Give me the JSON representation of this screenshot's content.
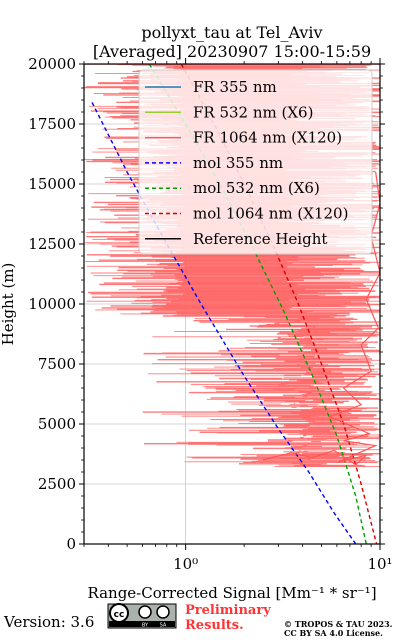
{
  "chart_data": {
    "type": "line",
    "title": "pollyxt_tau at Tel_Aviv",
    "subtitle": "[Averaged] 20230907 15:00-15:59",
    "xlabel": "Range-Corrected Signal [Mm⁻¹ * sr⁻¹]",
    "ylabel": "Height (m)",
    "x_scale": "log",
    "xlim": [
      0.3,
      10
    ],
    "ylim": [
      0,
      20000
    ],
    "x_tick_labels": [
      {
        "value": 1,
        "label": "10⁰"
      },
      {
        "value": 10,
        "label": "10¹"
      }
    ],
    "y_ticks": [
      0,
      2500,
      5000,
      7500,
      10000,
      12500,
      15000,
      17500,
      20000
    ],
    "grid": true,
    "legend_position": "top-right",
    "legend": [
      {
        "label": "FR 355 nm",
        "style": "solid",
        "color": "#1f77b4"
      },
      {
        "label": "FR 532 nm (X6)",
        "style": "solid",
        "color": "#9acd32"
      },
      {
        "label": "FR 1064 nm (X120)",
        "style": "solid",
        "color": "#ff5555"
      },
      {
        "label": "mol 355 nm",
        "style": "dashed",
        "color": "#0000ff"
      },
      {
        "label": "mol 532 nm (X6)",
        "style": "dashed",
        "color": "#00a000"
      },
      {
        "label": "mol 1064 nm (X120)",
        "style": "dashed",
        "color": "#dd0000"
      },
      {
        "label": "Reference Height",
        "style": "solid",
        "color": "#000000"
      }
    ],
    "series": [
      {
        "name": "mol 355 nm",
        "x": [
          0.33,
          0.5,
          0.8,
          1.2,
          2.0,
          3.0,
          4.3,
          5.8,
          7.5
        ],
        "y": [
          18400,
          15500,
          12500,
          10000,
          7000,
          4800,
          3000,
          1300,
          0
        ]
      },
      {
        "name": "mol 532 nm (X6)",
        "x": [
          0.65,
          1.0,
          1.5,
          2.2,
          3.2,
          4.5,
          6.0,
          7.5,
          8.5
        ],
        "y": [
          20000,
          17500,
          15000,
          12400,
          9700,
          7000,
          4500,
          2000,
          0
        ]
      },
      {
        "name": "mol 1064 nm (X120)",
        "x": [
          0.95,
          1.4,
          2.0,
          2.8,
          3.8,
          5.0,
          6.5,
          8.0,
          9.6
        ],
        "y": [
          20000,
          17500,
          15000,
          12500,
          10000,
          7500,
          5000,
          2500,
          0
        ]
      },
      {
        "name": "FR 1064 nm (X120)",
        "x": [
          2.5,
          3.5,
          4.5,
          5.8,
          7.5,
          8.5,
          6.0,
          9.5,
          6.5,
          8.8,
          5.5,
          8.0,
          6.5,
          9.0,
          8.0,
          9.8,
          8.5,
          10.0,
          9.0,
          10.0,
          9.5
        ],
        "y": [
          3500,
          3800,
          3600,
          3900,
          3300,
          3700,
          3400,
          4100,
          4300,
          4600,
          5300,
          5800,
          6500,
          7200,
          8300,
          9000,
          10200,
          11300,
          12800,
          14200,
          15500
        ]
      },
      {
        "name": "FR 355 nm",
        "x": [],
        "y": []
      },
      {
        "name": "FR 532 nm (X6)",
        "x": [],
        "y": []
      }
    ]
  },
  "footer": {
    "version": "Version: 3.6",
    "license_badge": {
      "cc": "cc",
      "by": "BY",
      "sa": "SA"
    },
    "preliminary": [
      "Preliminary",
      "Results."
    ],
    "copyright": [
      "© TROPOS & TAU 2023.",
      "CC BY SA 4.0 License."
    ]
  }
}
